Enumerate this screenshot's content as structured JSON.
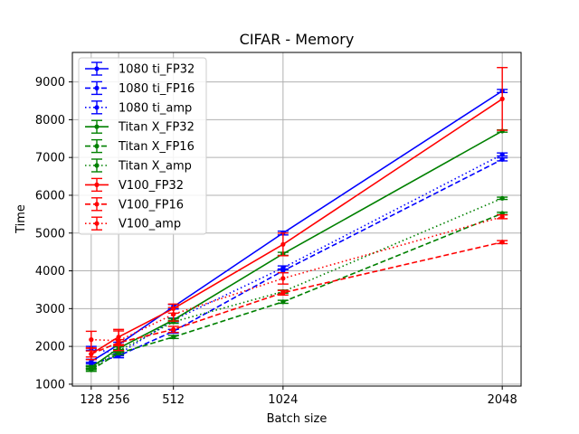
{
  "chart_data": {
    "type": "line",
    "title": "CIFAR - Memory",
    "xlabel": "Batch size",
    "ylabel": "Time",
    "x": [
      128,
      256,
      512,
      1024,
      2048
    ],
    "xticks": [
      "128",
      "256",
      "512",
      "1024",
      "2048"
    ],
    "xlim": [
      40,
      2136
    ],
    "ylim": [
      950,
      9780
    ],
    "yticks": [
      "1000",
      "2000",
      "3000",
      "4000",
      "5000",
      "6000",
      "7000",
      "8000",
      "9000"
    ],
    "grid": true,
    "legend_position": "upper-left",
    "series": [
      {
        "name": "1080 ti_FP32",
        "color": "#0000ff",
        "style": "solid",
        "values": [
          1600,
          2050,
          3050,
          5000,
          8760
        ],
        "errors": [
          60,
          60,
          60,
          50,
          40
        ]
      },
      {
        "name": "1080 ti_FP16",
        "color": "#0000ff",
        "style": "dashed",
        "values": [
          1530,
          1750,
          2400,
          4000,
          6950
        ],
        "errors": [
          50,
          50,
          50,
          50,
          40
        ]
      },
      {
        "name": "1080 ti_amp",
        "color": "#0000ff",
        "style": "dotted",
        "values": [
          1950,
          1800,
          2700,
          4080,
          7080
        ],
        "errors": [
          50,
          50,
          50,
          50,
          40
        ]
      },
      {
        "name": "Titan X_FP32",
        "color": "#008000",
        "style": "solid",
        "values": [
          1450,
          1950,
          2700,
          4450,
          7700
        ],
        "errors": [
          40,
          40,
          40,
          40,
          30
        ]
      },
      {
        "name": "Titan X_FP16",
        "color": "#008000",
        "style": "dashed",
        "values": [
          1380,
          1820,
          2250,
          3180,
          5520
        ],
        "errors": [
          40,
          40,
          40,
          40,
          30
        ]
      },
      {
        "name": "Titan X_amp",
        "color": "#008000",
        "style": "dotted",
        "values": [
          1420,
          1880,
          2650,
          3450,
          5920
        ],
        "errors": [
          40,
          40,
          40,
          40,
          30
        ]
      },
      {
        "name": "V100_FP32",
        "color": "#ff0000",
        "style": "solid",
        "values": [
          1800,
          2250,
          3000,
          4700,
          8550
        ],
        "errors": [
          150,
          200,
          120,
          300,
          830
        ]
      },
      {
        "name": "V100_FP16",
        "color": "#ff0000",
        "style": "dashed",
        "values": [
          1800,
          2100,
          2450,
          3420,
          4760
        ],
        "errors": [
          80,
          80,
          80,
          60,
          40
        ]
      },
      {
        "name": "V100_amp",
        "color": "#ff0000",
        "style": "dotted",
        "values": [
          2180,
          2150,
          2850,
          3800,
          5430
        ],
        "errors": [
          220,
          260,
          180,
          150,
          50
        ]
      }
    ]
  }
}
